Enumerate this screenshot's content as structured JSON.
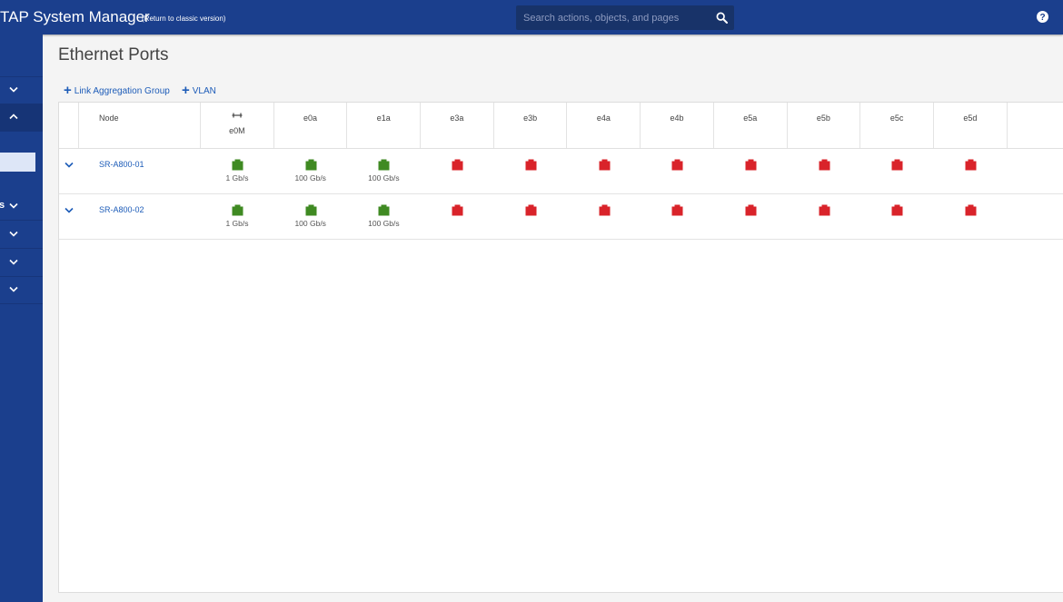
{
  "header": {
    "app_title": "TAP System Manager",
    "classic_link": "(Return to classic version)",
    "search_placeholder": "Search actions, objects, and pages",
    "bar_color": "#1b3f8d",
    "icons": [
      "search-icon",
      "help-icon"
    ]
  },
  "sidebar": {
    "items": [
      {
        "icon": "chevron-down-icon",
        "label": ""
      },
      {
        "icon": "chevron-up-icon",
        "label": "",
        "expanded": true
      },
      {
        "icon": "chevron-down-icon",
        "label": "s"
      },
      {
        "icon": "chevron-down-icon",
        "label": ""
      },
      {
        "icon": "chevron-down-icon",
        "label": ""
      },
      {
        "icon": "chevron-down-icon",
        "label": ""
      }
    ]
  },
  "page": {
    "title": "Ethernet Ports",
    "actions": {
      "link_aggregation": "Link Aggregation Group",
      "vlan": "VLAN"
    }
  },
  "table": {
    "node_header": "Node",
    "port_headers": [
      "e0M",
      "e0a",
      "e1a",
      "e3a",
      "e3b",
      "e4a",
      "e4b",
      "e5a",
      "e5b",
      "e5c",
      "e5d"
    ],
    "mgmt_port_icon": "management-port-icon",
    "rows": [
      {
        "node": "SR-A800-01",
        "ports": [
          {
            "status": "up",
            "speed": "1 Gb/s"
          },
          {
            "status": "up",
            "speed": "100 Gb/s"
          },
          {
            "status": "up",
            "speed": "100 Gb/s"
          },
          {
            "status": "down",
            "speed": ""
          },
          {
            "status": "down",
            "speed": ""
          },
          {
            "status": "down",
            "speed": ""
          },
          {
            "status": "down",
            "speed": ""
          },
          {
            "status": "down",
            "speed": ""
          },
          {
            "status": "down",
            "speed": ""
          },
          {
            "status": "down",
            "speed": ""
          },
          {
            "status": "down",
            "speed": ""
          }
        ]
      },
      {
        "node": "SR-A800-02",
        "ports": [
          {
            "status": "up",
            "speed": "1 Gb/s"
          },
          {
            "status": "up",
            "speed": "100 Gb/s"
          },
          {
            "status": "up",
            "speed": "100 Gb/s"
          },
          {
            "status": "down",
            "speed": ""
          },
          {
            "status": "down",
            "speed": ""
          },
          {
            "status": "down",
            "speed": ""
          },
          {
            "status": "down",
            "speed": ""
          },
          {
            "status": "down",
            "speed": ""
          },
          {
            "status": "down",
            "speed": ""
          },
          {
            "status": "down",
            "speed": ""
          },
          {
            "status": "down",
            "speed": ""
          }
        ]
      }
    ],
    "status_colors": {
      "up": "#3f8a22",
      "down": "#d9232a"
    }
  }
}
